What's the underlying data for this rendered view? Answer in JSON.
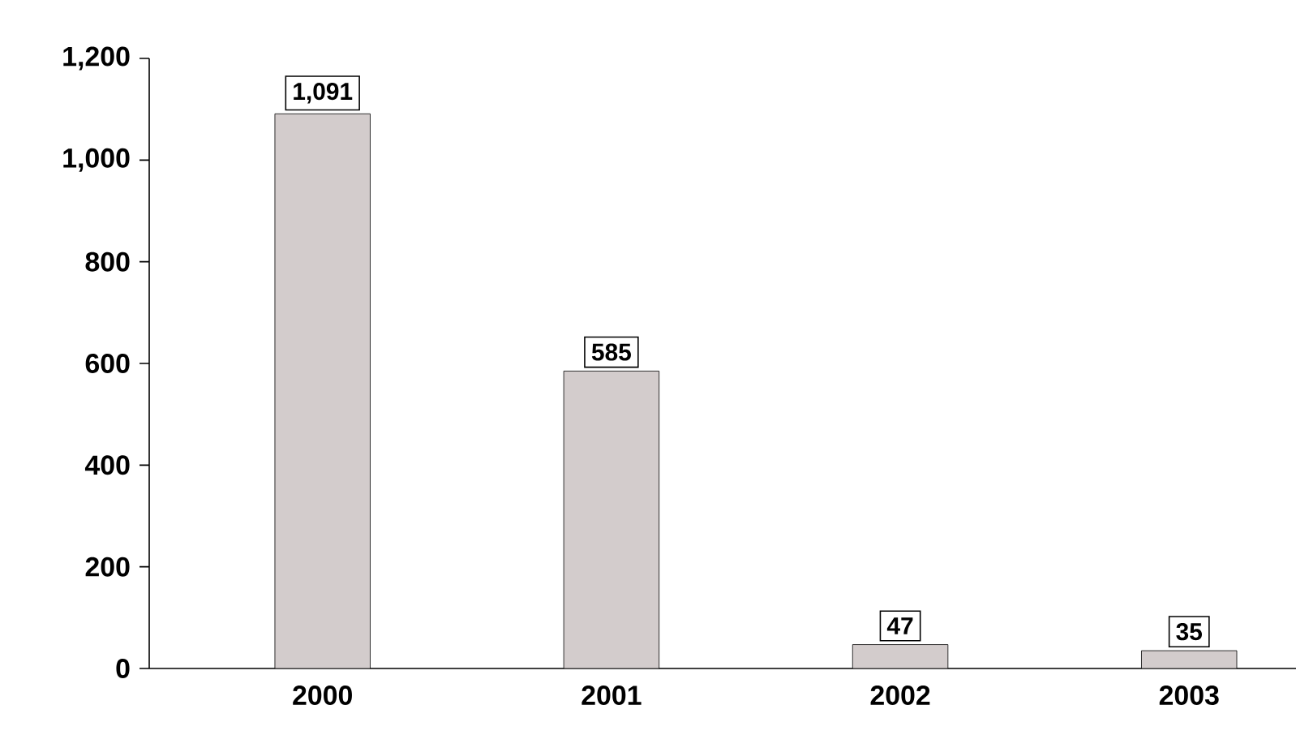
{
  "chart_data": {
    "type": "bar",
    "categories": [
      "2000",
      "2001",
      "2002",
      "2003"
    ],
    "values": [
      1091,
      585,
      47,
      35
    ],
    "value_labels": [
      "1,091",
      "585",
      "47",
      "35"
    ],
    "color": "#d3cccc",
    "ylim": [
      0,
      1200
    ],
    "yticks": [
      0,
      200,
      400,
      600,
      800,
      {
        "value": 1000,
        "label": "1,000"
      },
      {
        "value": 1200,
        "label": "1,200"
      }
    ],
    "grid": false
  }
}
